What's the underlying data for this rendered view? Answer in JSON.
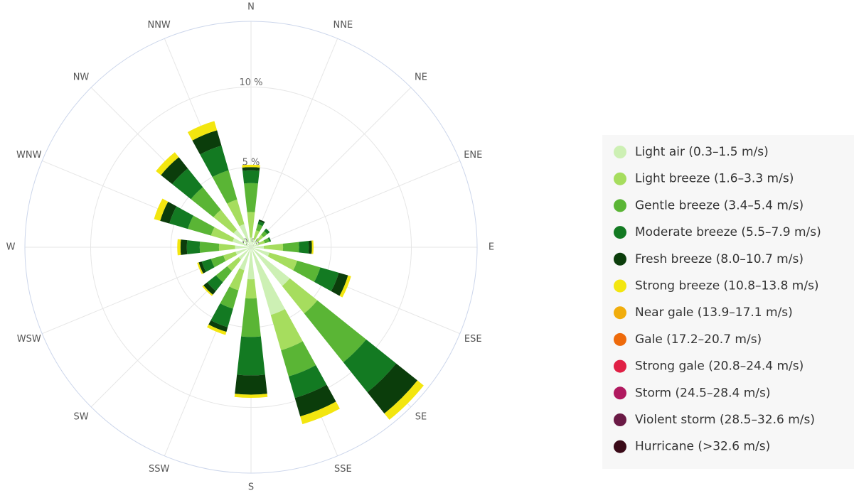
{
  "chart_data": {
    "type": "windrose",
    "categories": [
      "N",
      "NNE",
      "NE",
      "ENE",
      "E",
      "ESE",
      "SE",
      "SSE",
      "S",
      "SSW",
      "SW",
      "WSW",
      "W",
      "WNW",
      "NW",
      "NNW"
    ],
    "ylim": [
      0,
      14.1
    ],
    "yticks": [
      {
        "value": 0,
        "label": "0 %"
      },
      {
        "value": 5,
        "label": "5 %"
      },
      {
        "value": 10,
        "label": "10 %"
      }
    ],
    "grid": true,
    "legend": "right",
    "series": [
      {
        "name": "Light air (0.3–1.5 m/s)",
        "color": "#cdf0b4",
        "values": [
          0.6,
          0.5,
          0.5,
          0.5,
          0.8,
          1.2,
          3.1,
          4.4,
          2.0,
          1.5,
          1.0,
          1.0,
          1.0,
          1.2,
          1.4,
          1.5
        ]
      },
      {
        "name": "Light breeze (1.6–3.3 m/s)",
        "color": "#a6dd5e",
        "values": [
          1.6,
          0.6,
          0.5,
          0.4,
          1.2,
          1.8,
          2.2,
          2.3,
          1.2,
          1.3,
          0.9,
          0.8,
          1.0,
          1.4,
          1.6,
          1.6
        ]
      },
      {
        "name": "Gentle breeze (3.4–5.4 m/s)",
        "color": "#5ab535",
        "values": [
          1.8,
          0.4,
          0.3,
          0.3,
          1.0,
          1.5,
          3.9,
          1.7,
          2.4,
          1.2,
          0.9,
          0.8,
          1.2,
          1.5,
          1.8,
          1.9
        ]
      },
      {
        "name": "Moderate breeze (5.5–7.9 m/s)",
        "color": "#137a22",
        "values": [
          0.8,
          0.2,
          0.2,
          0.1,
          0.6,
          1.2,
          2.4,
          1.4,
          2.4,
          1.2,
          0.7,
          0.6,
          0.8,
          1.2,
          1.5,
          1.6
        ]
      },
      {
        "name": "Fresh breeze (8.0–10.7 m/s)",
        "color": "#0b3d0b",
        "values": [
          0.2,
          0.1,
          0,
          0,
          0.2,
          0.6,
          1.7,
          1.2,
          1.2,
          0.3,
          0.3,
          0.2,
          0.4,
          0.6,
          0.9,
          1.0
        ]
      },
      {
        "name": "Strong breeze (10.8–13.8 m/s)",
        "color": "#f3e60f",
        "values": [
          0.15,
          0,
          0,
          0,
          0.1,
          0.2,
          0.5,
          0.5,
          0.2,
          0.2,
          0.1,
          0.1,
          0.2,
          0.4,
          0.4,
          0.6
        ]
      },
      {
        "name": "Near gale (13.9–17.1 m/s)",
        "color": "#f1ad0c",
        "values": [
          0,
          0,
          0,
          0,
          0,
          0,
          0,
          0,
          0,
          0,
          0,
          0,
          0,
          0,
          0,
          0
        ]
      },
      {
        "name": "Gale (17.2–20.7 m/s)",
        "color": "#ee6a0b",
        "values": [
          0,
          0,
          0,
          0,
          0,
          0,
          0,
          0,
          0,
          0,
          0,
          0,
          0,
          0,
          0,
          0
        ]
      },
      {
        "name": "Strong gale (20.8–24.4 m/s)",
        "color": "#e02045",
        "values": [
          0,
          0,
          0,
          0,
          0,
          0,
          0,
          0,
          0,
          0,
          0,
          0,
          0,
          0,
          0,
          0
        ]
      },
      {
        "name": "Storm (24.5–28.4 m/s)",
        "color": "#b0195f",
        "values": [
          0,
          0,
          0,
          0,
          0,
          0,
          0,
          0,
          0,
          0,
          0,
          0,
          0,
          0,
          0,
          0
        ]
      },
      {
        "name": "Violent storm (28.5–32.6 m/s)",
        "color": "#6a1a45",
        "values": [
          0,
          0,
          0,
          0,
          0,
          0,
          0,
          0,
          0,
          0,
          0,
          0,
          0,
          0,
          0,
          0
        ]
      },
      {
        "name": "Hurricane (>32.6 m/s)",
        "color": "#3a0a18",
        "values": [
          0,
          0,
          0,
          0,
          0,
          0,
          0,
          0,
          0,
          0,
          0,
          0,
          0,
          0,
          0,
          0
        ]
      }
    ]
  }
}
